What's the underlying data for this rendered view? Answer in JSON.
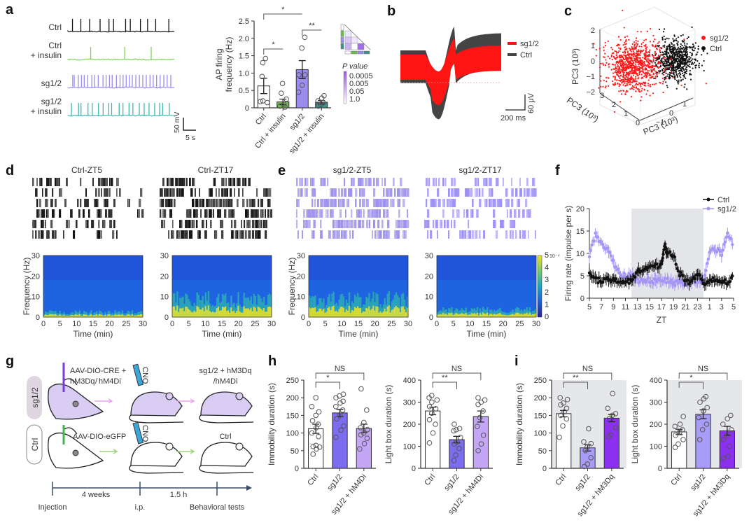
{
  "figure": {
    "panel_labels": [
      "a",
      "b",
      "c",
      "d",
      "e",
      "f",
      "g",
      "h",
      "i"
    ]
  },
  "chart_data": [
    {
      "panel": "a",
      "type": "traces",
      "trace_labels": [
        "Ctrl",
        "Ctrl\n+ insulin",
        "sg1/2",
        "sg1/2\n+ insulin"
      ],
      "trace_colors": [
        "#111111",
        "#7dd35a",
        "#9b8cf0",
        "#3fb7b0"
      ],
      "spike_counts": [
        12,
        3,
        30,
        20
      ],
      "scale_bar": {
        "y_label": "50 mV",
        "x_label": "5 s"
      }
    },
    {
      "panel": "a",
      "type": "bar",
      "ylabel": "AP firing\nfrequency (Hz)",
      "ylim": [
        0,
        2.5
      ],
      "yticks": [
        "0",
        "0.5",
        "1.0",
        "1.5",
        "2.0",
        "2.5"
      ],
      "categories": [
        "Ctrl",
        "Ctrl + insulin",
        "sg1/2",
        "sg1/2 + insulin"
      ],
      "values": [
        0.63,
        0.17,
        1.1,
        0.16
      ],
      "sem": [
        0.22,
        0.08,
        0.26,
        0.05
      ],
      "bar_colors": [
        "#ffffff",
        "#6fbf4a",
        "#9b8cf0",
        "#3c8f8c"
      ],
      "points": [
        [
          0.18,
          0.2,
          0.15,
          0.9,
          1.3,
          1.42
        ],
        [
          0.05,
          0.1,
          0.25,
          0.42,
          0.7,
          0.02
        ],
        [
          0.45,
          0.65,
          0.95,
          0.95,
          1.72,
          2.03
        ],
        [
          0.05,
          0.1,
          0.15,
          0.2,
          0.28,
          0.35
        ]
      ],
      "significance": [
        {
          "pair": [
            0,
            2
          ],
          "label": "*"
        },
        {
          "pair": [
            0,
            1
          ],
          "label": "*"
        },
        {
          "pair": [
            2,
            3
          ],
          "label": "**"
        }
      ],
      "pvalue_legend": {
        "title": "P value",
        "levels": [
          "0.0005",
          "0.005",
          "0.05",
          "1.0"
        ]
      }
    },
    {
      "panel": "b",
      "type": "waveform",
      "legend": [
        {
          "name": "sg1/2",
          "color": "#ff1010"
        },
        {
          "name": "Ctrl",
          "color": "#444444"
        }
      ],
      "scale_bar": {
        "x_label": "200 ms",
        "y_label": "60 μV"
      }
    },
    {
      "panel": "c",
      "type": "scatter",
      "title": "",
      "zlabel": "PC3 (10³)",
      "xlabel": "PC3 (10³)",
      "ylabel": "PC3 (10³)",
      "zticks": [
        "2",
        "1",
        "0",
        "−1",
        "−2"
      ],
      "xticks": [
        "3",
        "2",
        "1",
        "0"
      ],
      "yticks": [
        "−1",
        "0",
        "1"
      ],
      "legend": [
        {
          "name": "sg1/2",
          "color": "#ff1a1a"
        },
        {
          "name": "Ctrl",
          "color": "#111111"
        }
      ]
    },
    {
      "panel": "d",
      "type": "heatmap",
      "rasters": [
        {
          "title": "Ctrl-ZT5",
          "color": "#111111",
          "density": 0.45
        },
        {
          "title": "Ctrl-ZT17",
          "color": "#111111",
          "density": 0.75
        }
      ],
      "ylabel": "Frequency (Hz)",
      "xlabel": "Time (min)",
      "xticks": [
        "0",
        "5",
        "10",
        "15",
        "20",
        "25",
        "30"
      ],
      "yticks": [
        "0",
        "10",
        "20",
        "30"
      ],
      "power_band_height": [
        0.08,
        0.3
      ]
    },
    {
      "panel": "e",
      "type": "heatmap",
      "rasters": [
        {
          "title": "sg1/2-ZT5",
          "color": "#9d90f2",
          "density": 0.8
        },
        {
          "title": "sg1/2-ZT17",
          "color": "#9d90f2",
          "density": 0.55
        }
      ],
      "ylabel": "Frequency (Hz)",
      "xlabel": "Time (min)",
      "xticks": [
        "0",
        "5",
        "10",
        "15",
        "20",
        "25",
        "30"
      ],
      "yticks": [
        "0",
        "10",
        "20",
        "30"
      ],
      "power_band_height": [
        0.3,
        0.12
      ],
      "colorbar": {
        "ticks": [
          "0",
          "1",
          "2",
          "3",
          "4",
          "5"
        ],
        "exponent": "10⁻⁴"
      }
    },
    {
      "panel": "f",
      "type": "line",
      "ylabel": "Firing rate (impulse per s)",
      "xlabel": "ZT",
      "ylim": [
        0,
        20
      ],
      "yticks": [
        "0",
        "5",
        "10",
        "15",
        "20"
      ],
      "xticks": [
        "5",
        "7",
        "9",
        "11",
        "13",
        "15",
        "17",
        "19",
        "21",
        "23",
        "1",
        "3",
        "5"
      ],
      "dark_phase": [
        12,
        24
      ],
      "series": [
        {
          "name": "Ctrl",
          "color": "#111111",
          "x": [
            5,
            6,
            7,
            8,
            9,
            10,
            11,
            12,
            13,
            14,
            15,
            16,
            17,
            17.5,
            18,
            19,
            20,
            21,
            22,
            23,
            24,
            25,
            26,
            27,
            28,
            29
          ],
          "values": [
            5.5,
            4,
            4,
            4.3,
            4,
            4,
            4,
            3.5,
            6,
            6.5,
            7,
            7,
            7.5,
            12,
            10,
            9.5,
            5.5,
            4,
            3.5,
            5.5,
            3.5,
            4,
            4.5,
            4,
            3.5,
            5
          ]
        },
        {
          "name": "sg1/2",
          "color": "#a596f5",
          "x": [
            5,
            6,
            7,
            8,
            9,
            10,
            11,
            12,
            13,
            14,
            15,
            16,
            17,
            18,
            19,
            20,
            21,
            22,
            23,
            24,
            25,
            26,
            27,
            28,
            29
          ],
          "values": [
            9.5,
            14,
            12,
            11,
            8,
            5.5,
            5,
            5,
            4,
            4.2,
            4,
            3.8,
            4,
            4,
            3.5,
            3.5,
            3.5,
            3.8,
            4,
            4,
            10,
            11,
            10,
            14,
            12
          ]
        }
      ]
    },
    {
      "panel": "g",
      "type": "diagram",
      "groups": [
        {
          "label": "sg1/2",
          "virus": "AAV-DIO-CRE +",
          "virus2a": "hM3Dq",
          "virus2b": "/",
          "virus2c": "hM4Di",
          "outcome": "sg1/2 + hM3Dq",
          "outcome2": "/hM4Di"
        },
        {
          "label": "Ctrl",
          "virus": "AAV-DIO-eGFP",
          "outcome": "Ctrl"
        }
      ],
      "drug": "CNO",
      "timeline": {
        "intervals": [
          "4 weeks",
          "1.5 h"
        ],
        "events": [
          "Injection",
          "i.p.",
          "Behavioral tests"
        ]
      }
    },
    {
      "panel": "h",
      "type": "bar",
      "subplots": [
        {
          "ylabel": "Immobility duration (s)",
          "ylim": [
            0,
            250
          ],
          "yticks": [
            "0",
            "50",
            "100",
            "150",
            "200",
            "250"
          ],
          "categories": [
            "Ctrl",
            "sg1/2",
            "sg1/2 + hM4Di"
          ],
          "values": [
            112,
            157,
            113
          ],
          "sem": [
            13,
            10,
            12
          ],
          "bar_colors": [
            "#ffffff",
            "#7b6cf0",
            "#c4a6f6"
          ],
          "points": [
            [
              40,
              55,
              60,
              62,
              65,
              90,
              100,
              115,
              125,
              135,
              150,
              160,
              175,
              200
            ],
            [
              88,
              108,
              120,
              140,
              150,
              165,
              175,
              185,
              190,
              200,
              205,
              210
            ],
            [
              55,
              70,
              85,
              95,
              100,
              110,
              115,
              130,
              165,
              225
            ]
          ],
          "significance": [
            {
              "pair": [
                0,
                2
              ],
              "label": "NS"
            },
            {
              "pair": [
                0,
                1
              ],
              "label": "*"
            }
          ]
        },
        {
          "ylabel": "Light box duration (s)",
          "ylim": [
            0,
            400
          ],
          "yticks": [
            "0",
            "100",
            "200",
            "300",
            "400"
          ],
          "categories": [
            "Ctrl",
            "sg1/2",
            "sg1/2 + hM4Di"
          ],
          "values": [
            260,
            130,
            235
          ],
          "sem": [
            17,
            15,
            25
          ],
          "bar_colors": [
            "#ffffff",
            "#7b6cf0",
            "#c4a6f6"
          ],
          "points": [
            [
              115,
              160,
              200,
              220,
              250,
              270,
              280,
              300,
              310,
              320,
              330
            ],
            [
              35,
              60,
              90,
              110,
              120,
              140,
              170,
              175,
              180,
              200
            ],
            [
              80,
              110,
              150,
              190,
              230,
              260,
              290,
              300,
              310,
              320
            ]
          ],
          "significance": [
            {
              "pair": [
                0,
                2
              ],
              "label": "NS"
            },
            {
              "pair": [
                0,
                1
              ],
              "label": "**"
            }
          ]
        }
      ]
    },
    {
      "panel": "i",
      "type": "bar",
      "background": "#e6e7ea",
      "subplots": [
        {
          "ylabel": "Immobility duration (s)",
          "ylim": [
            0,
            250
          ],
          "yticks": [
            "0",
            "50",
            "100",
            "150",
            "200",
            "250"
          ],
          "categories": [
            "Ctrl",
            "sg1/2",
            "sg1/2 + hM3Dq"
          ],
          "values": [
            155,
            58,
            142
          ],
          "sem": [
            9,
            9,
            10
          ],
          "bar_colors": [
            "#ffffff",
            "#a99cf8",
            "#8b2ff0"
          ],
          "points": [
            [
              88,
              120,
              140,
              150,
              160,
              170,
              180,
              185,
              195,
              200
            ],
            [
              5,
              12,
              30,
              50,
              60,
              70,
              75,
              112
            ],
            [
              90,
              95,
              115,
              140,
              150,
              155,
              170,
              212
            ]
          ],
          "significance": [
            {
              "pair": [
                0,
                2
              ],
              "label": "NS"
            },
            {
              "pair": [
                0,
                1
              ],
              "label": "**"
            }
          ]
        },
        {
          "ylabel": "Light box duration (s)",
          "ylim": [
            0,
            400
          ],
          "yticks": [
            "0",
            "100",
            "200",
            "300",
            "400"
          ],
          "categories": [
            "Ctrl",
            "sg1/2",
            "sg1/2 + hM3Dq"
          ],
          "values": [
            165,
            245,
            170
          ],
          "sem": [
            12,
            20,
            20
          ],
          "bar_colors": [
            "#ffffff",
            "#a99cf8",
            "#8b2ff0"
          ],
          "points": [
            [
              95,
              110,
              130,
              150,
              165,
              175,
              190,
              200,
              235
            ],
            [
              130,
              175,
              200,
              230,
              260,
              275,
              300,
              315,
              325
            ],
            [
              45,
              55,
              100,
              130,
              150,
              175,
              200,
              225,
              240
            ]
          ],
          "significance": [
            {
              "pair": [
                0,
                2
              ],
              "label": "NS"
            },
            {
              "pair": [
                0,
                1
              ],
              "label": "*"
            }
          ]
        }
      ]
    }
  ]
}
